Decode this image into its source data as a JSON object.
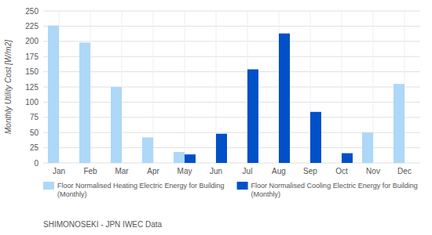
{
  "chart_data": {
    "type": "bar",
    "ylabel": "Monthly Utility Cost [W/m2]",
    "footnote": "SHIMONOSEKI - JPN IWEC Data",
    "categories": [
      "Jan",
      "Feb",
      "Mar",
      "Apr",
      "May",
      "Jun",
      "Jul",
      "Aug",
      "Sep",
      "Oct",
      "Nov",
      "Dec"
    ],
    "series": [
      {
        "name": "Floor Normalised Heating Electric Energy for Building\n(Monthly)",
        "color": "#add8f7",
        "values": [
          226,
          198,
          125,
          42,
          18,
          0,
          0,
          0,
          0,
          0,
          50,
          130
        ]
      },
      {
        "name": "Floor Normalised Cooling Electric Energy for Building\n(Monthly)",
        "color": "#0050c8",
        "values": [
          0,
          0,
          0,
          0,
          14,
          48,
          154,
          213,
          84,
          16,
          0,
          0
        ]
      }
    ],
    "ylim": [
      0,
      250
    ],
    "yticks": [
      0,
      25,
      50,
      75,
      100,
      125,
      150,
      175,
      200,
      225,
      250
    ],
    "grid": true,
    "legend": "bottom"
  }
}
